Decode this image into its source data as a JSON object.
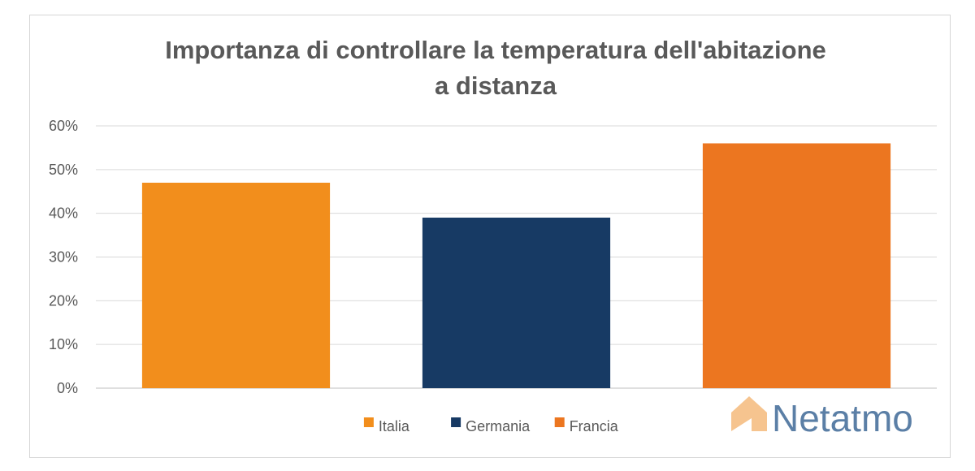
{
  "chart_data": {
    "type": "bar",
    "title_line1": "Importanza di controllare la temperatura dell'abitazione",
    "title_line2": "a distanza",
    "categories": [
      "Italia",
      "Germania",
      "Francia"
    ],
    "values": [
      47,
      39,
      56
    ],
    "colors": [
      "#f28e1c",
      "#173a64",
      "#ec7620"
    ],
    "y_ticks": [
      "0%",
      "10%",
      "20%",
      "30%",
      "40%",
      "50%",
      "60%"
    ],
    "ylim": [
      0,
      60
    ],
    "grid": true,
    "legend_position": "bottom"
  },
  "watermark": {
    "text": "Netatmo",
    "icon": "house-icon",
    "color": "#5b7fa6",
    "icon_color": "#f6c48f"
  }
}
